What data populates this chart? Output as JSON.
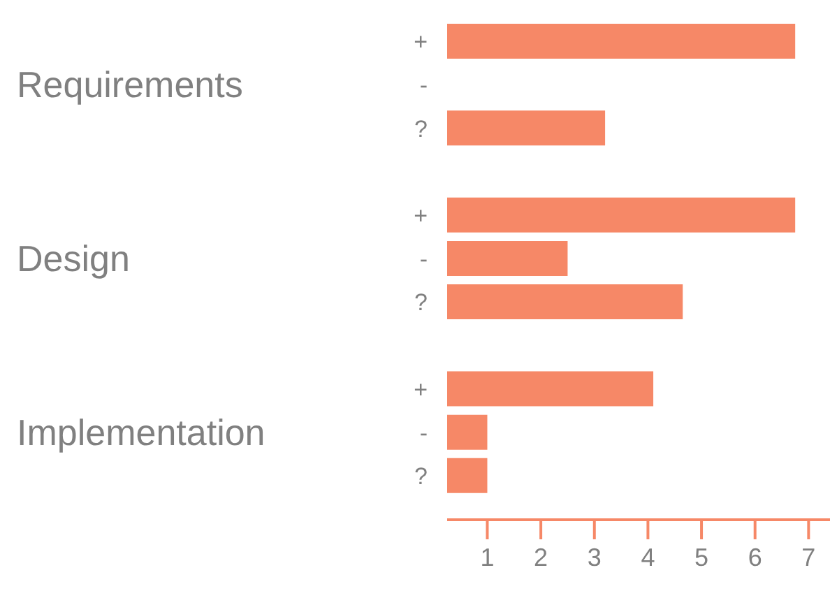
{
  "chart_data": {
    "type": "bar",
    "orientation": "horizontal",
    "categories": [
      "+",
      "-",
      "?",
      null,
      "+",
      "-",
      "?",
      null,
      "+",
      "-",
      "?"
    ],
    "values": [
      6.75,
      null,
      3.2,
      null,
      6.75,
      2.5,
      4.65,
      null,
      4.1,
      1,
      1
    ],
    "color": "#f68867",
    "xlim": [
      0.25,
      7.4
    ],
    "xticks": [
      1,
      2,
      3,
      4,
      5,
      6,
      7
    ],
    "annotations": [
      "Requirements",
      "Design",
      "Implementation"
    ]
  }
}
